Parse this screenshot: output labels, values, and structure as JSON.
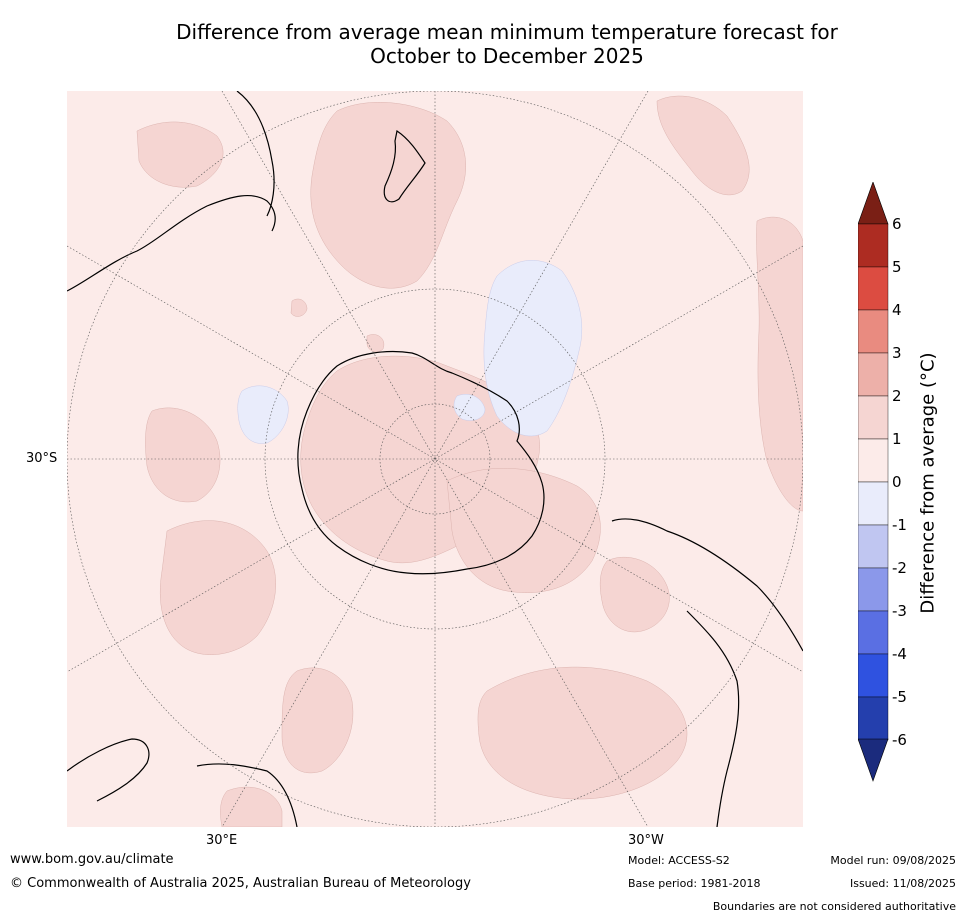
{
  "title_line1": "Difference from average mean minimum temperature forecast for",
  "title_line2": "October to December 2025",
  "map": {
    "lat_label": "30°S",
    "lon_labels": [
      "30°E",
      "30°W"
    ],
    "ocean_color": "#fcebe9",
    "warm_color": "#f5d5d2",
    "cool_color": "#e9ecfb"
  },
  "colorbar": {
    "title": "Difference from average (°C)",
    "ticks": [
      "6",
      "5",
      "4",
      "3",
      "2",
      "1",
      "0",
      "-1",
      "-2",
      "-3",
      "-4",
      "-5",
      "-6"
    ],
    "colors": [
      "#7a1f15",
      "#ad2c22",
      "#dc4c41",
      "#e98b80",
      "#edb0a9",
      "#f5d5d2",
      "#fcebe9",
      "#e9ecfb",
      "#c0c6f1",
      "#8b98ea",
      "#5a6fe3",
      "#2f52e0",
      "#243fad",
      "#1b2b7d"
    ]
  },
  "footer": {
    "website": "www.bom.gov.au/climate",
    "copyright": "© Commonwealth of Australia 2025, Australian Bureau of Meteorology",
    "model": "Model: ACCESS-S2",
    "base_period": "Base period: 1981-2018",
    "model_run": "Model run: 09/08/2025",
    "issued": "Issued: 11/08/2025",
    "disclaimer": "Boundaries are not considered authoritative"
  }
}
